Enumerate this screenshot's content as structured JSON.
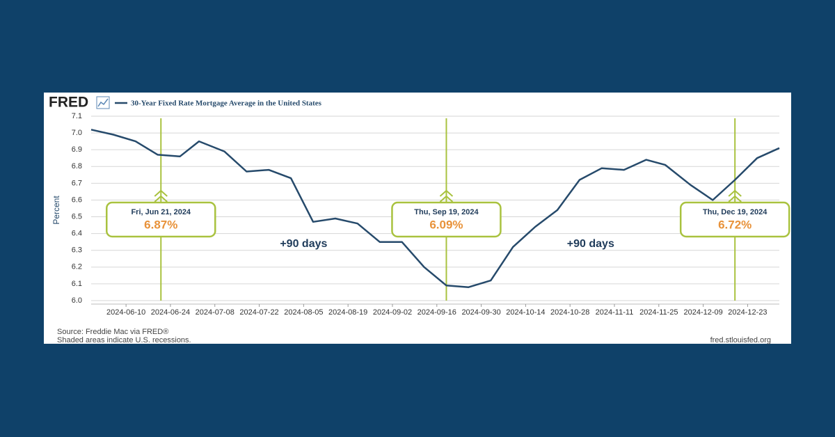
{
  "chart_data": {
    "type": "line",
    "logo": "FRED",
    "y_label": "Percent",
    "source": "Source: Freddie Mac via FRED®",
    "note": "Shaded areas indicate U.S. recessions.",
    "site": "fred.stlouisfed.org",
    "x": [
      "2024-05-30",
      "2024-06-06",
      "2024-06-13",
      "2024-06-20",
      "2024-06-27",
      "2024-07-03",
      "2024-07-11",
      "2024-07-18",
      "2024-07-25",
      "2024-08-01",
      "2024-08-08",
      "2024-08-15",
      "2024-08-22",
      "2024-08-29",
      "2024-09-05",
      "2024-09-12",
      "2024-09-19",
      "2024-09-26",
      "2024-10-03",
      "2024-10-10",
      "2024-10-17",
      "2024-10-24",
      "2024-10-31",
      "2024-11-07",
      "2024-11-14",
      "2024-11-21",
      "2024-11-27",
      "2024-12-05",
      "2024-12-12",
      "2024-12-19",
      "2024-12-26",
      "2025-01-02"
    ],
    "series": [
      {
        "name": "30-Year Fixed Rate Mortgage Average in the United States",
        "color": "#264a6b",
        "values": [
          7.02,
          6.99,
          6.95,
          6.87,
          6.86,
          6.95,
          6.89,
          6.77,
          6.78,
          6.73,
          6.47,
          6.49,
          6.46,
          6.35,
          6.35,
          6.2,
          6.09,
          6.08,
          6.12,
          6.32,
          6.44,
          6.54,
          6.72,
          6.79,
          6.78,
          6.84,
          6.81,
          6.69,
          6.6,
          6.72,
          6.85,
          6.91
        ]
      }
    ],
    "xlim": [
      "2024-05-30",
      "2025-01-02"
    ],
    "xticks": [
      "2024-06-10",
      "2024-06-24",
      "2024-07-08",
      "2024-07-22",
      "2024-08-05",
      "2024-08-19",
      "2024-09-02",
      "2024-09-16",
      "2024-09-30",
      "2024-10-14",
      "2024-10-28",
      "2024-11-11",
      "2024-11-25",
      "2024-12-09",
      "2024-12-23"
    ],
    "ylim": [
      6.0,
      7.1
    ],
    "yticks": [
      {
        "value": 6.0,
        "label": "6.0"
      },
      6.1,
      6.2,
      6.3,
      6.4,
      6.5,
      6.6,
      6.7,
      6.8,
      6.9,
      {
        "value": 7.0,
        "label": "7.0"
      },
      7.1
    ],
    "grid": true,
    "annotations": [
      {
        "x": "2024-06-21",
        "date_label": "Fri, Jun 21, 2024",
        "value": 6.87,
        "value_label": "6.87%"
      },
      {
        "x": "2024-09-19",
        "date_label": "Thu, Sep 19, 2024",
        "value": 6.09,
        "value_label": "6.09%"
      },
      {
        "x": "2024-12-19",
        "date_label": "Thu, Dec 19, 2024",
        "value": 6.72,
        "value_label": "6.72%"
      }
    ],
    "span_labels": [
      "+90 days",
      "+90 days"
    ],
    "annotation_color": "#a9c23f"
  }
}
